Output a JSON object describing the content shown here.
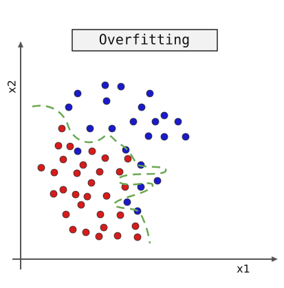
{
  "chart_data": {
    "type": "scatter",
    "title": "Overfitting",
    "x_label": "x1",
    "y_label": "x2",
    "xlim": [
      0,
      370
    ],
    "ylim": [
      0,
      317
    ],
    "series": [
      {
        "color": "#1a1acc",
        "x": [
          83,
          123,
          146,
          188,
          125,
          70,
          176,
          101,
          133,
          164,
          196,
          209,
          229,
          186,
          209,
          240,
          83,
          153,
          175,
          199,
          175,
          155,
          170
        ],
        "values": [
          241,
          253,
          251,
          241,
          230,
          221,
          221,
          190,
          190,
          200,
          200,
          209,
          200,
          179,
          178,
          178,
          157,
          159,
          137,
          114,
          105,
          83,
          70
        ]
      },
      {
        "color": "#d81b1b",
        "x": [
          60,
          55,
          72,
          104,
          62,
          123,
          156,
          30,
          49,
          91,
          82,
          115,
          144,
          103,
          62,
          48,
          80,
          97,
          125,
          152,
          88,
          66,
          116,
          145,
          76,
          95,
          121,
          114,
          141,
          167,
          170
        ],
        "values": [
          190,
          165,
          164,
          157,
          145,
          147,
          146,
          133,
          126,
          137,
          125,
          127,
          127,
          111,
          101,
          95,
          94,
          91,
          92,
          105,
          79,
          65,
          65,
          64,
          43,
          39,
          46,
          33,
          34,
          48,
          32
        ]
      }
    ]
  }
}
